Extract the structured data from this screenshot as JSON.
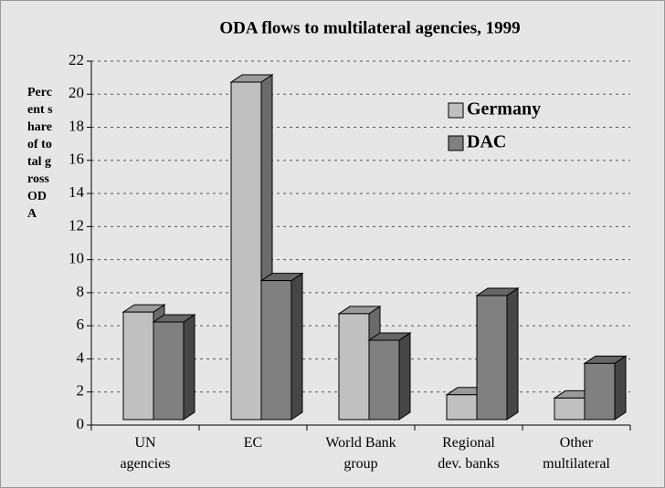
{
  "chart_data": {
    "type": "bar3d",
    "title": "ODA flows to multilateral agencies, 1999",
    "y_label": "Percent share of total gross ODA",
    "categories": [
      "UN agencies",
      "EC",
      "World Bank group",
      "Regional dev. banks",
      "Other multilateral"
    ],
    "series": [
      {
        "name": "Germany",
        "color": "#c0c0c0",
        "values": [
          6.5,
          20.4,
          6.4,
          1.5,
          1.3
        ]
      },
      {
        "name": "DAC",
        "color": "#808080",
        "values": [
          5.9,
          8.4,
          4.8,
          7.5,
          3.4
        ]
      }
    ],
    "ylim": [
      0,
      22
    ],
    "yticks": [
      0,
      2,
      4,
      6,
      8,
      10,
      12,
      14,
      16,
      18,
      20,
      22
    ],
    "grid": true,
    "legend": "top-right"
  }
}
